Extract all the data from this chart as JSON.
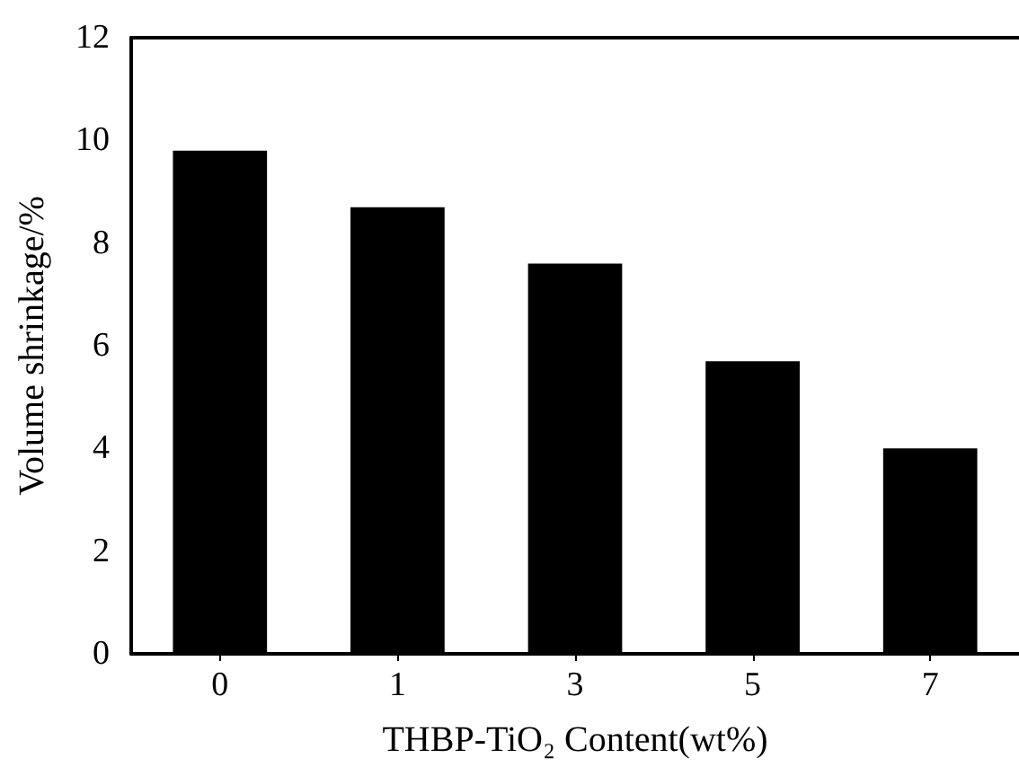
{
  "chart_data": {
    "type": "bar",
    "xlabel": "THBP-TiO₂ Content(wt%)",
    "ylabel": "Volume shrinkage/%",
    "categories": [
      "0",
      "1",
      "3",
      "5",
      "7"
    ],
    "values": [
      9.8,
      8.7,
      7.6,
      5.7,
      4.0
    ],
    "color": "#000000",
    "ylim": [
      0,
      12
    ],
    "yticks": [
      0,
      2,
      4,
      6,
      8,
      10,
      12
    ],
    "grid": false
  }
}
